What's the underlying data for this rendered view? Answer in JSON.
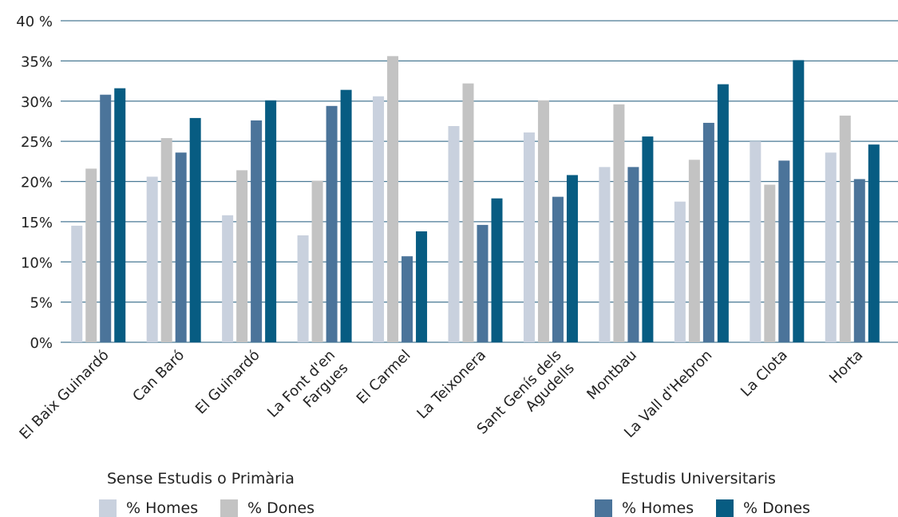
{
  "chart_data": {
    "type": "bar",
    "categories": [
      [
        "El Baix Guinardó"
      ],
      [
        "Can Baró"
      ],
      [
        "El Guinardó"
      ],
      [
        "La Font d'en",
        "Fargues"
      ],
      [
        "El Carmel"
      ],
      [
        "La Teixonera"
      ],
      [
        "Sant Genís dels",
        "Agudells"
      ],
      [
        "Montbau"
      ],
      [
        "La Vall d'Hebron"
      ],
      [
        "La Clota"
      ],
      [
        "Horta"
      ]
    ],
    "yticks": [
      "0%",
      "5%",
      "10%",
      "15%",
      "20%",
      "25%",
      "30%",
      "35%",
      "40 %"
    ],
    "ylim": [
      0,
      40
    ],
    "grid": true,
    "series": [
      {
        "color": "#c9d1de",
        "values": [
          14.5,
          20.6,
          15.8,
          13.3,
          30.6,
          26.9,
          26.1,
          21.8,
          17.5,
          25.0,
          23.6
        ]
      },
      {
        "color": "#c3c3c3",
        "values": [
          21.6,
          25.4,
          21.4,
          20.1,
          35.6,
          32.2,
          30.1,
          29.6,
          22.7,
          19.6,
          28.2
        ]
      },
      {
        "color": "#4b749a",
        "values": [
          30.8,
          23.6,
          27.6,
          29.4,
          10.7,
          14.6,
          18.1,
          21.8,
          27.3,
          22.6,
          20.3
        ]
      },
      {
        "color": "#075c82",
        "values": [
          31.6,
          27.9,
          30.1,
          31.4,
          13.8,
          17.9,
          20.8,
          25.6,
          32.1,
          35.1,
          24.6
        ]
      }
    ]
  },
  "legend": {
    "group1": {
      "title": "Sense Estudis o Primària",
      "homes": "% Homes",
      "dones": "% Dones"
    },
    "group2": {
      "title": "Estudis Universitaris",
      "homes": "% Homes",
      "dones": "% Dones"
    }
  }
}
